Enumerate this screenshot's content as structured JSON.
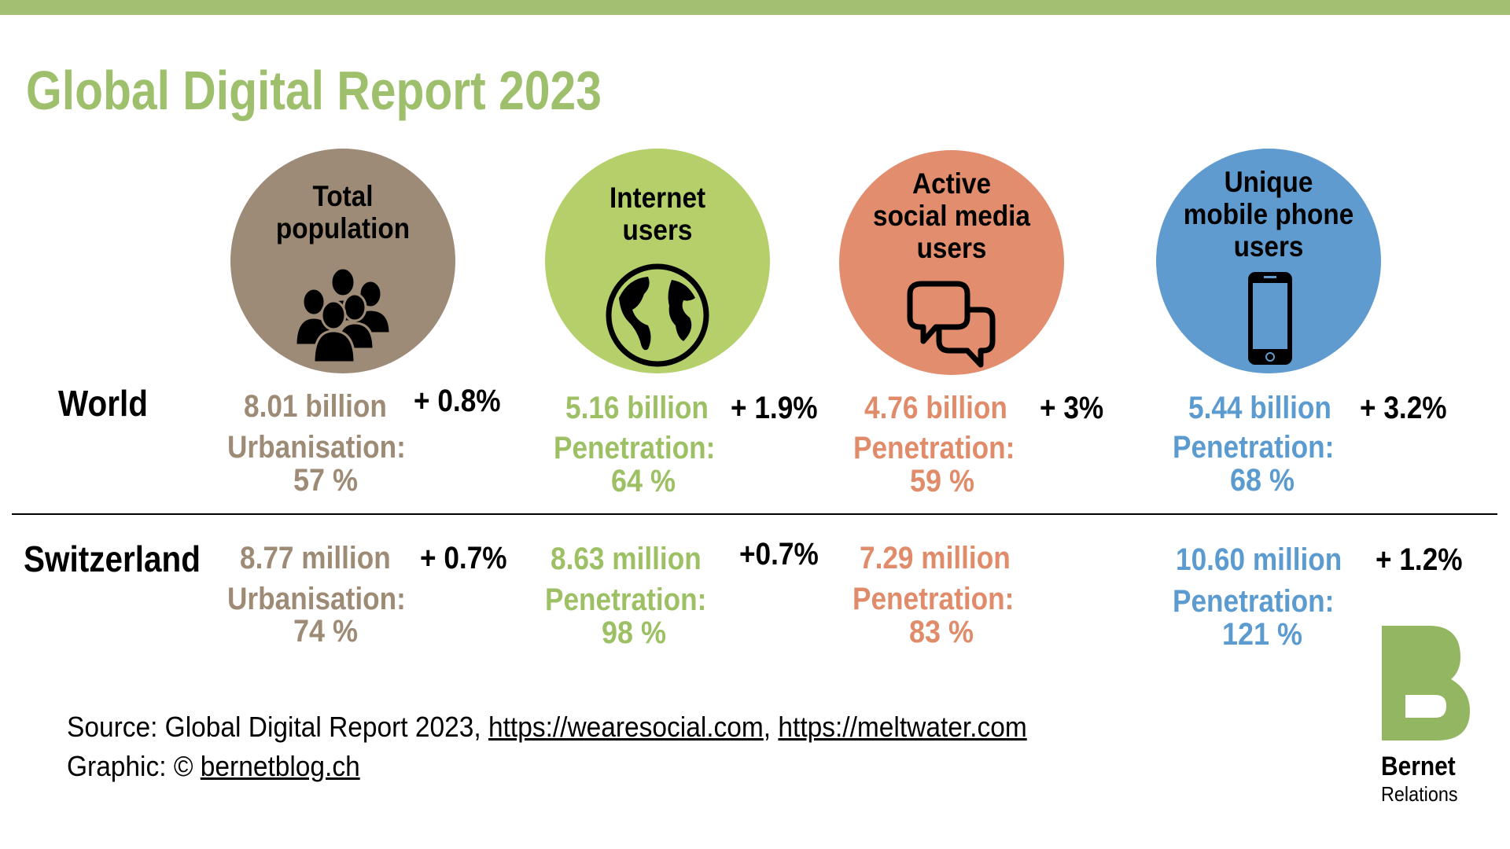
{
  "title": "Global Digital Report 2023",
  "colors": {
    "bar": "#a3bf72",
    "population": "#9e8b77",
    "internet": "#b5cf6b",
    "social": "#e28d6d",
    "mobile": "#5f9bcf",
    "logo": "#93b662"
  },
  "categories": [
    {
      "title_lines": [
        "Total",
        "population"
      ],
      "icon": "people-group-icon"
    },
    {
      "title_lines": [
        "Internet",
        "users"
      ],
      "icon": "globe-icon"
    },
    {
      "title_lines": [
        "Active",
        "social media",
        "users"
      ],
      "icon": "speech-bubbles-icon"
    },
    {
      "title_lines": [
        "Unique",
        "mobile phone",
        "users"
      ],
      "icon": "mobile-phone-icon"
    }
  ],
  "world": {
    "label": "World",
    "cells": [
      {
        "value": "8.01 billion",
        "delta": "+ 0.8%",
        "metric": "Urbanisation:",
        "percent": "57 %"
      },
      {
        "value": "5.16 billion",
        "delta": "+ 1.9%",
        "metric": "Penetration:",
        "percent": "64 %"
      },
      {
        "value": "4.76 billion",
        "delta": "+ 3%",
        "metric": "Penetration:",
        "percent": "59 %"
      },
      {
        "value": "5.44 billion",
        "delta": "+ 3.2%",
        "metric": "Penetration:",
        "percent": "68 %"
      }
    ]
  },
  "switzerland": {
    "label": "Switzerland",
    "cells": [
      {
        "value": "8.77 million",
        "delta": "+ 0.7%",
        "metric": "Urbanisation:",
        "percent": "74 %"
      },
      {
        "value": "8.63 million",
        "delta": "+0.7%",
        "metric": "Penetration:",
        "percent": "98 %"
      },
      {
        "value": "7.29 million",
        "delta": "",
        "metric": "Penetration:",
        "percent": "83 %"
      },
      {
        "value": "10.60 million",
        "delta": "+ 1.2%",
        "metric": "Penetration:",
        "percent": "121 %"
      }
    ]
  },
  "footer": {
    "source_prefix": "Source: Global Digital Report 2023, ",
    "link1": "https://wearesocial.com",
    "sep": ", ",
    "link2": "https://meltwater.com",
    "graphic_prefix": "Graphic: © ",
    "link3": "bernetblog.ch"
  },
  "logo": {
    "name": "Bernet",
    "sub": "Relations"
  }
}
